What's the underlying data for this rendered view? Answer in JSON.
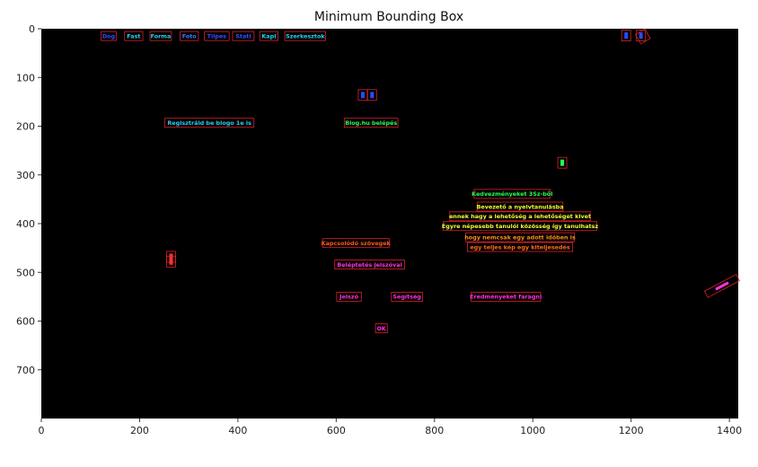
{
  "chart_data": {
    "type": "image_annotation",
    "title": "Minimum Bounding Box",
    "xlim": [
      0,
      1418
    ],
    "ylim": [
      800,
      0
    ],
    "x_ticks": [
      0,
      200,
      400,
      600,
      800,
      1000,
      1200,
      1400
    ],
    "y_ticks": [
      0,
      100,
      200,
      300,
      400,
      500,
      600,
      700
    ],
    "background": "#000000",
    "box_color": "#e0202a",
    "regions": [
      {
        "label": "Dog",
        "x": 137,
        "y": 15,
        "color": "#3050ff"
      },
      {
        "label": "Fast",
        "x": 188,
        "y": 15,
        "color": "#22d3ee"
      },
      {
        "label": "Forma",
        "x": 243,
        "y": 15,
        "color": "#22d3ee"
      },
      {
        "label": "Foto",
        "x": 301,
        "y": 15,
        "color": "#3a7bff"
      },
      {
        "label": "Tilpes",
        "x": 357,
        "y": 15,
        "color": "#3050ff"
      },
      {
        "label": "Stati",
        "x": 411,
        "y": 15,
        "color": "#3050ff"
      },
      {
        "label": "Kapl",
        "x": 463,
        "y": 15,
        "color": "#22d3ee"
      },
      {
        "label": "Szerkesztok",
        "x": 537,
        "y": 15,
        "color": "#22d3ee"
      },
      {
        "label": "Regisztráld be blogo 1e is",
        "x": 342,
        "y": 193,
        "color": "#22d3ee"
      },
      {
        "label": "Blog.hu belépés",
        "x": 671,
        "y": 193,
        "color": "#22ff55"
      },
      {
        "label": "Kedvezményeket 3Sz-ből",
        "x": 958,
        "y": 339,
        "color": "#22ff55"
      },
      {
        "label": "Bevezető a nyelvtanulásba",
        "x": 974,
        "y": 365,
        "color": "#eeff33"
      },
      {
        "label": "ennek hagy a lehetőség a lehetőséget kivet",
        "x": 974,
        "y": 385,
        "color": "#eeff33"
      },
      {
        "label": "Egyre népesebb tanulói közösség így tanulhatsz",
        "x": 974,
        "y": 405,
        "color": "#eeff33"
      },
      {
        "label": "hogy nemcsak egy adott időben is",
        "x": 974,
        "y": 428,
        "color": "#ff8c1a"
      },
      {
        "label": "egy teljes kép egy kiteljesedés",
        "x": 974,
        "y": 448,
        "color": "#ff6a1a"
      },
      {
        "label": "Kapcsolódó szövegek",
        "x": 640,
        "y": 440,
        "color": "#ff5a1a"
      },
      {
        "label": "Beléptetés jelszóval",
        "x": 668,
        "y": 484,
        "color": "#ff33dd"
      },
      {
        "label": "Jelszó",
        "x": 626,
        "y": 550,
        "color": "#ff33dd"
      },
      {
        "label": "Segítség",
        "x": 744,
        "y": 550,
        "color": "#ff33dd"
      },
      {
        "label": "Eredményeket faragni",
        "x": 945,
        "y": 550,
        "color": "#ff33dd"
      },
      {
        "label": "OK",
        "x": 692,
        "y": 615,
        "color": "#ff33dd"
      }
    ],
    "icons": [
      {
        "x": 1190,
        "y": 14,
        "color": "#2a4bff"
      },
      {
        "x": 1220,
        "y": 14,
        "color": "#2a4bff"
      },
      {
        "x": 654,
        "y": 136,
        "color": "#2a4bff"
      },
      {
        "x": 673,
        "y": 136,
        "color": "#2a4bff"
      },
      {
        "x": 1060,
        "y": 275,
        "color": "#22ff55"
      },
      {
        "x": 264,
        "y": 468,
        "color": "#ff3030"
      },
      {
        "x": 264,
        "y": 478,
        "color": "#ff3030"
      }
    ]
  }
}
